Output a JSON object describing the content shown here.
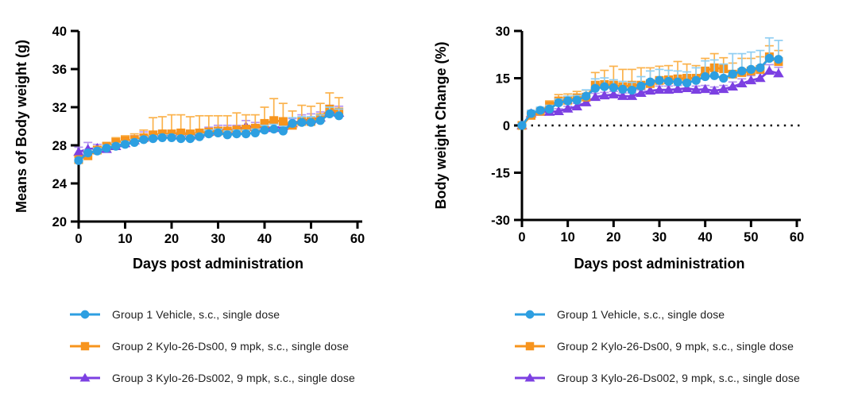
{
  "page": {
    "background": "#ffffff"
  },
  "legend": {
    "items": [
      {
        "label": "Group 1 Vehicle, s.c., single dose",
        "color": "#2d9fe1",
        "marker": "circle"
      },
      {
        "label": "Group 2 Kylo-26-Ds00, 9 mpk, s.c., single dose",
        "color": "#f7941d",
        "marker": "square"
      },
      {
        "label": "Group 3 Kylo-26-Ds002, 9 mpk, s.c., single dose",
        "color": "#7c40e2",
        "marker": "triangle"
      }
    ]
  },
  "chart_data": [
    {
      "type": "line",
      "title": "",
      "xlabel": "Days post administration",
      "ylabel": "Means of Body weight (g)",
      "xlim": [
        0,
        60
      ],
      "ylim": [
        20,
        40
      ],
      "xticks": [
        0,
        10,
        20,
        30,
        40,
        50,
        60
      ],
      "yticks": [
        20,
        24,
        28,
        32,
        36,
        40
      ],
      "grid": false,
      "zero_dotted": false,
      "legend_position": "bottom",
      "x": [
        0,
        2,
        4,
        6,
        8,
        10,
        12,
        14,
        16,
        18,
        20,
        22,
        24,
        26,
        28,
        30,
        32,
        34,
        36,
        38,
        40,
        42,
        44,
        46,
        48,
        50,
        52,
        54,
        56
      ],
      "series": [
        {
          "name": "Group 1 Vehicle, s.c., single dose",
          "marker": "circle",
          "color": "#2d9fe1",
          "error_color": "#8fcef2",
          "values": [
            26.4,
            27.2,
            27.4,
            27.7,
            27.9,
            28.1,
            28.3,
            28.6,
            28.7,
            28.8,
            28.8,
            28.7,
            28.7,
            28.9,
            29.2,
            29.3,
            29.1,
            29.2,
            29.2,
            29.3,
            29.6,
            29.7,
            29.5,
            30.3,
            30.4,
            30.4,
            30.6,
            31.3,
            31.1
          ],
          "errors": [
            0.2,
            0.3,
            0.3,
            0.3,
            0.3,
            0.3,
            0.3,
            0.3,
            0.3,
            0.3,
            0.3,
            0.3,
            0.3,
            0.3,
            0.4,
            0.4,
            0.4,
            0.4,
            0.4,
            0.4,
            0.5,
            0.5,
            0.5,
            0.6,
            0.6,
            0.6,
            0.6,
            0.7,
            0.7
          ]
        },
        {
          "name": "Group 2 Kylo-26-Ds00, 9 mpk, s.c., single dose",
          "marker": "square",
          "color": "#f7941d",
          "error_color": "#fbb24c",
          "values": [
            26.5,
            26.9,
            27.5,
            27.9,
            28.3,
            28.5,
            28.6,
            28.8,
            29.1,
            29.2,
            29.2,
            29.3,
            29.2,
            29.3,
            29.4,
            29.5,
            29.5,
            29.6,
            29.7,
            29.8,
            30.3,
            30.6,
            30.5,
            30.1,
            30.5,
            30.5,
            30.9,
            31.8,
            31.5
          ],
          "errors": [
            0.3,
            0.5,
            0.4,
            0.4,
            0.5,
            0.5,
            0.6,
            0.8,
            1.8,
            1.8,
            2.0,
            1.9,
            1.8,
            1.8,
            1.7,
            1.6,
            1.6,
            1.8,
            1.5,
            1.4,
            1.7,
            2.3,
            1.9,
            1.5,
            1.7,
            1.6,
            1.5,
            1.7,
            1.5
          ]
        },
        {
          "name": "Group 3 Kylo-26-Ds002, 9 mpk, s.c., single dose",
          "marker": "triangle",
          "color": "#7c40e2",
          "error_color": "#b493f0",
          "values": [
            27.3,
            27.6,
            27.7,
            27.6,
            27.9,
            28.2,
            28.5,
            28.8,
            29.0,
            29.1,
            29.1,
            29.0,
            29.0,
            29.2,
            29.4,
            29.6,
            29.6,
            29.6,
            30.0,
            29.9,
            29.9,
            29.8,
            30.0,
            30.3,
            30.6,
            30.7,
            30.9,
            31.5,
            31.4
          ],
          "errors": [
            0.5,
            0.7,
            0.4,
            0.5,
            0.4,
            0.4,
            0.5,
            0.6,
            0.4,
            0.4,
            0.4,
            0.4,
            0.4,
            0.4,
            0.5,
            0.5,
            0.5,
            0.5,
            0.6,
            0.5,
            0.5,
            0.5,
            0.5,
            0.5,
            0.6,
            0.6,
            0.6,
            0.7,
            0.7
          ]
        }
      ]
    },
    {
      "type": "line",
      "title": "",
      "xlabel": "Days post administration",
      "ylabel": "Body weight Change (%)",
      "xlim": [
        0,
        60
      ],
      "ylim": [
        -30,
        30
      ],
      "xticks": [
        0,
        10,
        20,
        30,
        40,
        50,
        60
      ],
      "yticks": [
        -30,
        -15,
        0,
        15,
        30
      ],
      "grid": false,
      "zero_dotted": true,
      "legend_position": "bottom",
      "x": [
        0,
        2,
        4,
        6,
        8,
        10,
        12,
        14,
        16,
        18,
        20,
        22,
        24,
        26,
        28,
        30,
        32,
        34,
        36,
        38,
        40,
        42,
        44,
        46,
        48,
        50,
        52,
        54,
        56
      ],
      "series": [
        {
          "name": "Group 1 Vehicle, s.c., single dose",
          "marker": "circle",
          "color": "#2d9fe1",
          "error_color": "#8fcef2",
          "values": [
            0,
            3.8,
            4.8,
            5.2,
            7.2,
            7.8,
            8.0,
            9.3,
            11.8,
            12.3,
            12.0,
            11.5,
            11.2,
            12.5,
            13.8,
            14.3,
            14.0,
            13.8,
            13.5,
            14.3,
            15.5,
            15.8,
            15.0,
            16.3,
            17.3,
            17.8,
            18.3,
            21.3,
            21.0
          ],
          "errors": [
            0.5,
            1.0,
            1.0,
            1.2,
            1.2,
            1.5,
            1.5,
            2.0,
            3.0,
            2.8,
            2.5,
            2.5,
            2.5,
            3.0,
            3.5,
            3.5,
            3.5,
            3.5,
            3.5,
            4.0,
            5.0,
            5.0,
            4.5,
            6.5,
            5.5,
            5.5,
            5.5,
            6.5,
            6.0
          ]
        },
        {
          "name": "Group 2 Kylo-26-Ds00, 9 mpk, s.c., single dose",
          "marker": "square",
          "color": "#f7941d",
          "error_color": "#fbb24c",
          "values": [
            0,
            3.2,
            4.5,
            6.3,
            7.8,
            8.0,
            8.8,
            9.0,
            12.8,
            13.0,
            12.8,
            12.3,
            12.8,
            12.8,
            13.3,
            14.3,
            14.5,
            14.8,
            15.0,
            15.0,
            17.3,
            18.3,
            18.0,
            16.3,
            16.8,
            17.3,
            17.8,
            21.8,
            20.3
          ],
          "errors": [
            0.5,
            1.0,
            1.2,
            1.5,
            2.0,
            2.0,
            2.0,
            2.2,
            4.0,
            4.5,
            6.0,
            5.5,
            5.0,
            5.5,
            5.0,
            4.5,
            4.5,
            5.5,
            4.5,
            4.0,
            4.0,
            4.5,
            3.5,
            3.5,
            4.5,
            4.0,
            4.0,
            3.5,
            3.5
          ]
        },
        {
          "name": "Group 3 Kylo-26-Ds002, 9 mpk, s.c., single dose",
          "marker": "triangle",
          "color": "#7c40e2",
          "error_color": "#b493f0",
          "values": [
            0,
            3.8,
            4.3,
            4.3,
            4.5,
            5.3,
            6.0,
            7.3,
            9.0,
            9.5,
            9.8,
            9.3,
            9.3,
            10.3,
            11.0,
            11.3,
            11.3,
            11.5,
            11.8,
            11.3,
            11.5,
            11.0,
            11.5,
            12.3,
            13.3,
            14.3,
            15.0,
            17.3,
            16.5
          ],
          "errors": [
            0.3,
            1.0,
            0.8,
            0.8,
            0.8,
            0.8,
            1.0,
            1.0,
            1.2,
            1.0,
            1.0,
            1.0,
            1.0,
            1.0,
            1.2,
            1.2,
            1.2,
            1.2,
            1.2,
            1.2,
            1.2,
            1.2,
            1.2,
            1.5,
            1.5,
            1.5,
            1.5,
            2.0,
            2.0
          ]
        }
      ]
    }
  ]
}
